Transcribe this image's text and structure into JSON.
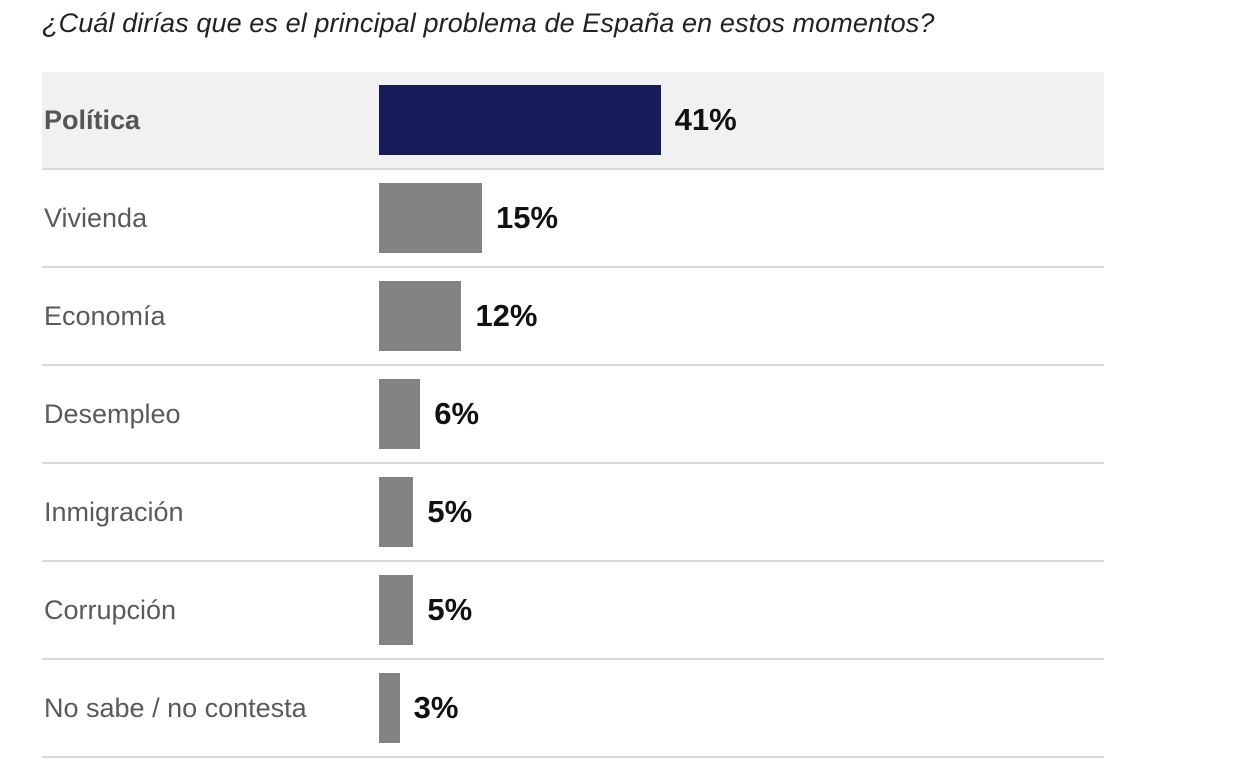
{
  "chart_data": {
    "type": "bar",
    "orientation": "horizontal",
    "title": "¿Cuál dirías que es el principal problema de España en estos momentos?",
    "categories": [
      "Política",
      "Vivienda",
      "Economía",
      "Desempleo",
      "Inmigración",
      "Corrupción",
      "No sabe / no contesta"
    ],
    "values": [
      41,
      15,
      12,
      6,
      5,
      5,
      3
    ],
    "value_labels": [
      "41%",
      "15%",
      "12%",
      "6%",
      "5%",
      "5%",
      "3%"
    ],
    "highlight_index": 0,
    "colors": {
      "highlight_bar": "#161d5a",
      "bar": "#838383",
      "highlight_row_bg": "#f1f1f1",
      "divider": "#d9d9d9"
    },
    "xlim": [
      0,
      100
    ],
    "grid": false
  }
}
